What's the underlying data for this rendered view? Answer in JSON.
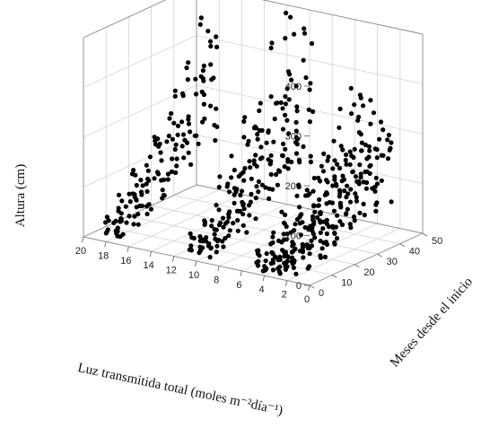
{
  "chart_data": {
    "type": "scatter",
    "title": "",
    "xlabel": "Luz transmitida total (moles m⁻²día⁻¹)",
    "ylabel": "Meses desde el inicio",
    "zlabel": "Altura (cm)",
    "xlim": [
      0,
      20
    ],
    "ylim": [
      0,
      50
    ],
    "zlim": [
      0,
      400
    ],
    "x_ticks": [
      "20",
      "18",
      "16",
      "14",
      "12",
      "10",
      "8",
      "6",
      "4",
      "2",
      "0"
    ],
    "y_ticks": [
      "0",
      "10",
      "20",
      "30",
      "40",
      "50"
    ],
    "z_ticks": [
      "0",
      "100",
      "200",
      "300",
      "400"
    ],
    "grid": true,
    "point_color": "#000000",
    "sample_times_months": [
      3,
      9,
      15,
      21,
      27,
      33,
      39,
      45
    ],
    "light_levels": [
      18.5,
      17.8,
      17.2,
      11,
      10.2,
      9.5,
      8.8,
      5.2,
      4.5,
      3.8,
      3.2,
      2.6,
      1.9
    ],
    "final_height_means_cm": [
      240,
      255,
      225,
      290,
      270,
      250,
      245,
      200,
      190,
      180,
      165,
      150,
      140
    ]
  }
}
